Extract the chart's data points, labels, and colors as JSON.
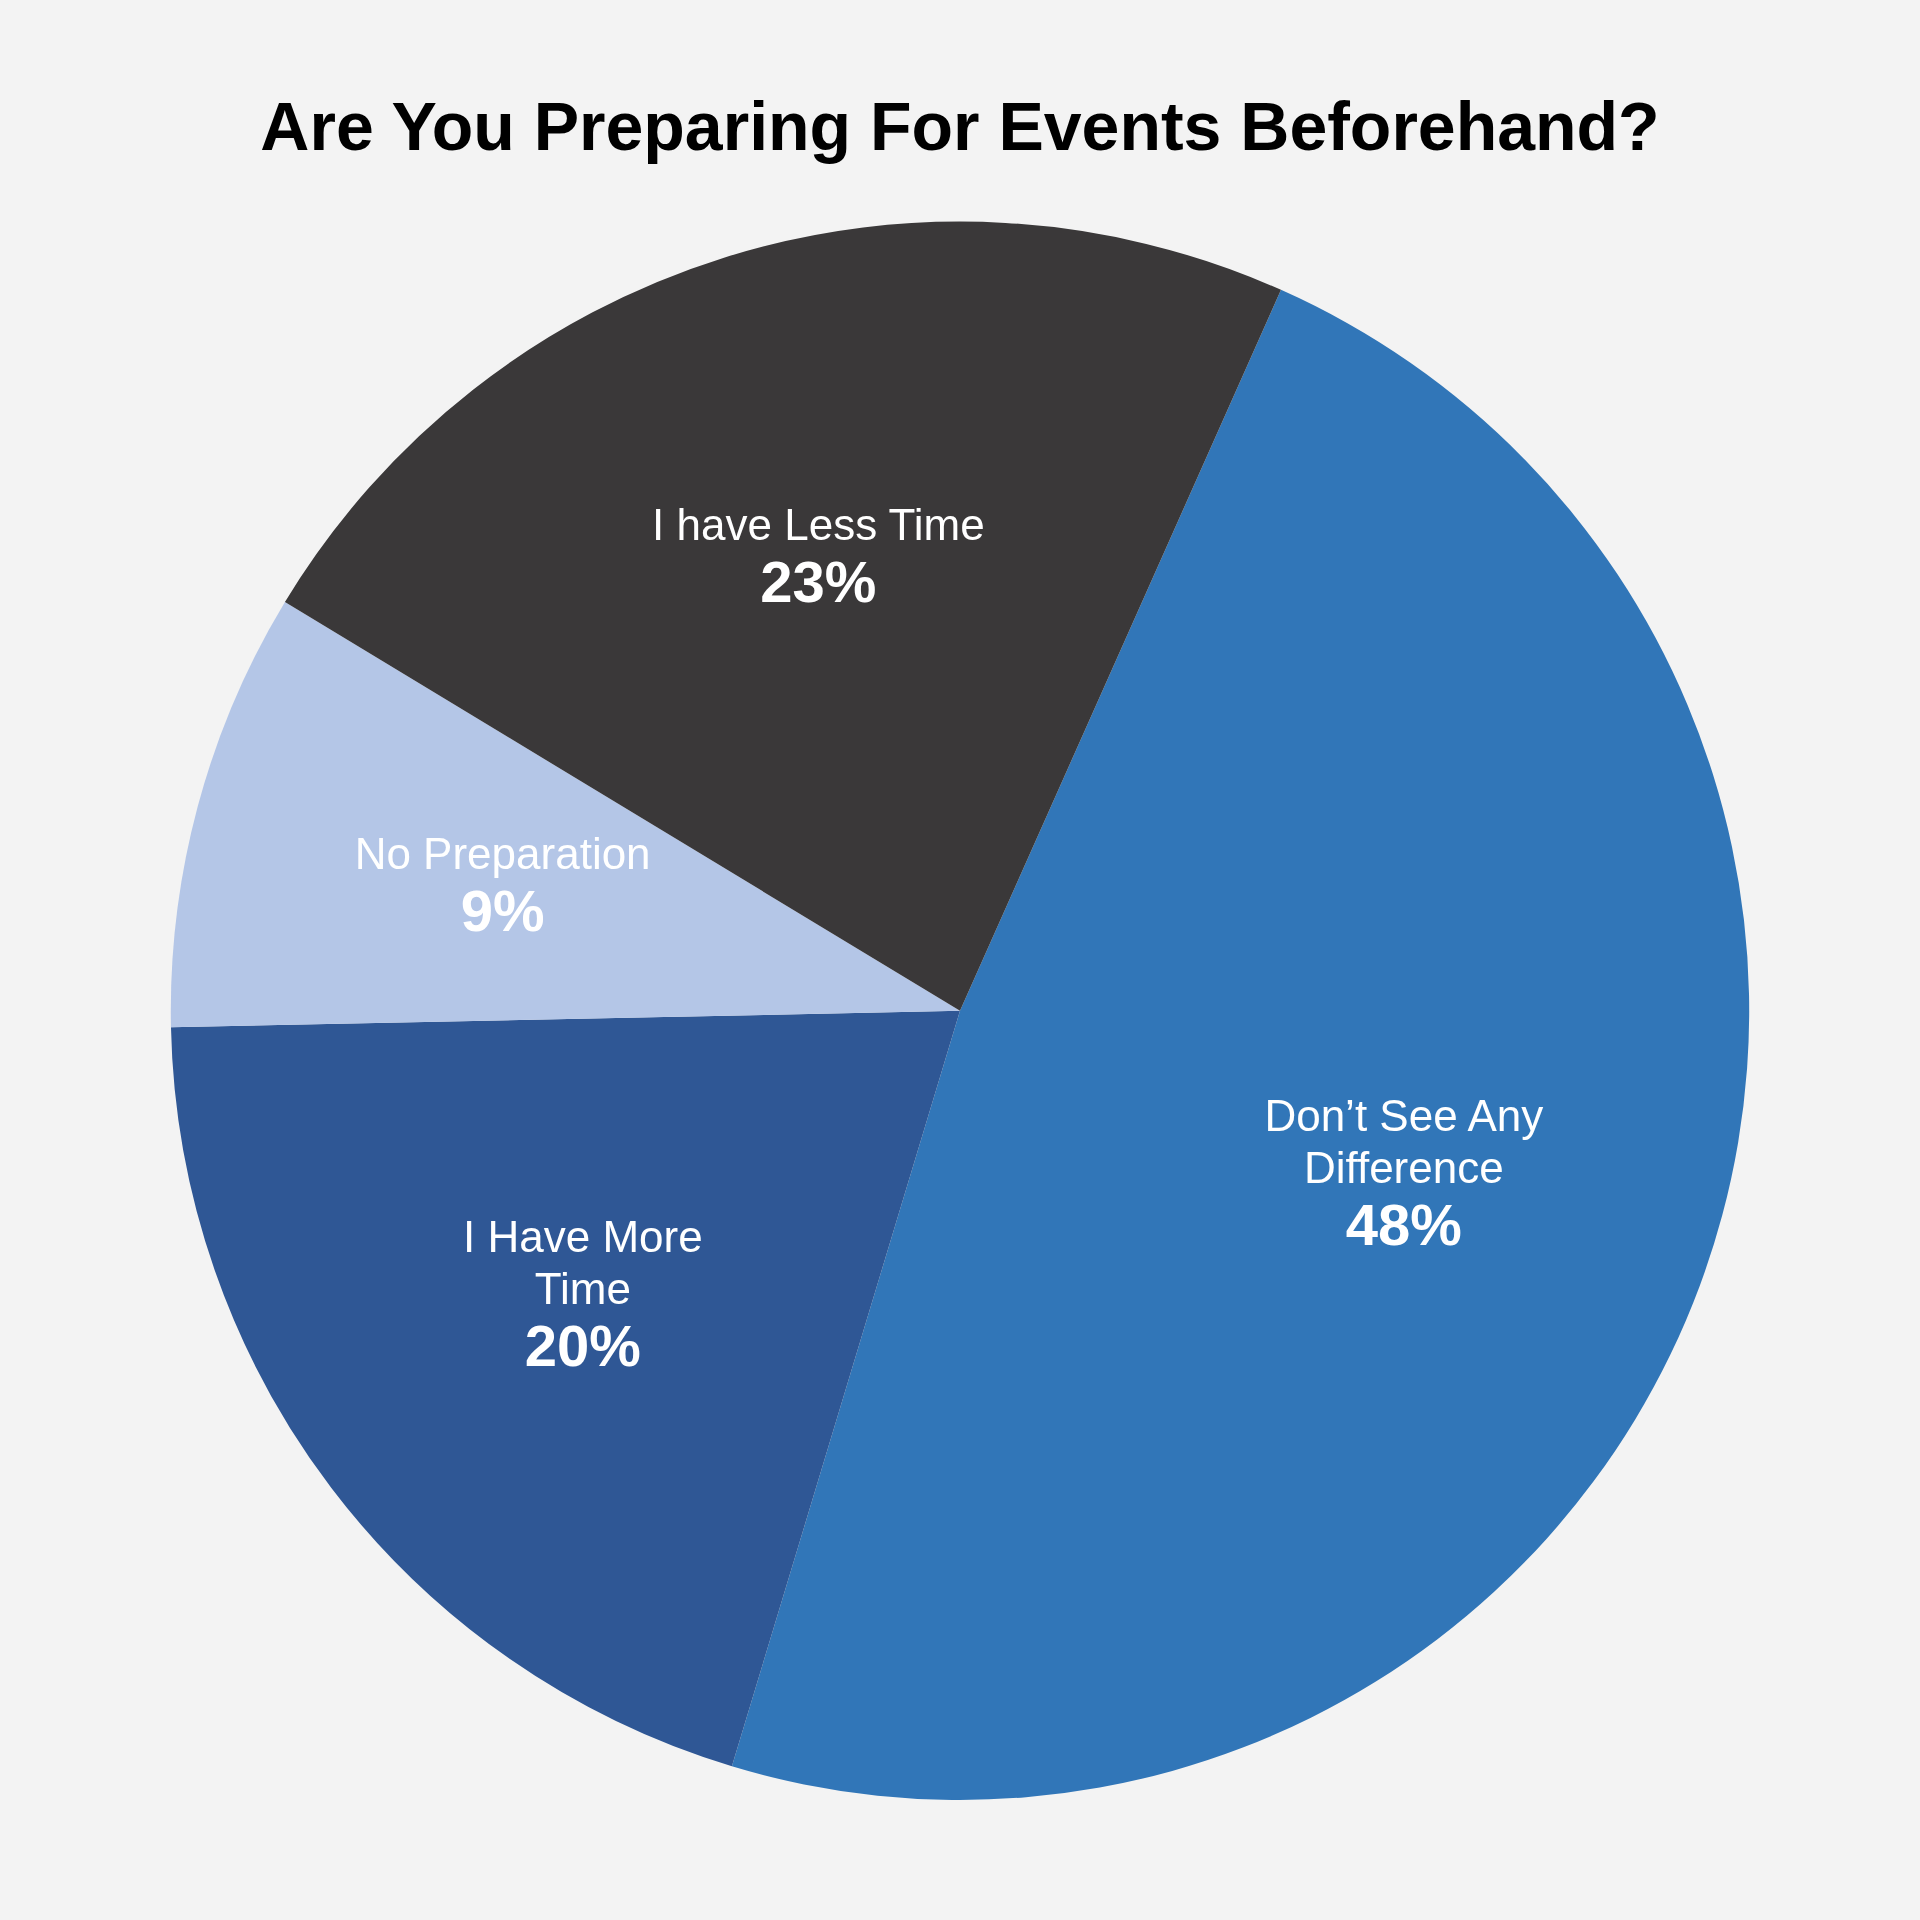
{
  "chart_data": {
    "type": "pie",
    "title": "Are You Preparing For Events Beforehand?",
    "categories": [
      "Don’t See Any Difference",
      "I Have More Time",
      "No Preparation",
      "I have Less Time"
    ],
    "values": [
      48,
      20,
      9,
      23
    ],
    "value_labels": [
      "48%",
      "20%",
      "9%",
      "23%"
    ],
    "colors": [
      "#3176b8",
      "#2f5795",
      "#b4c6e7",
      "#3a3839"
    ],
    "legend": false
  }
}
